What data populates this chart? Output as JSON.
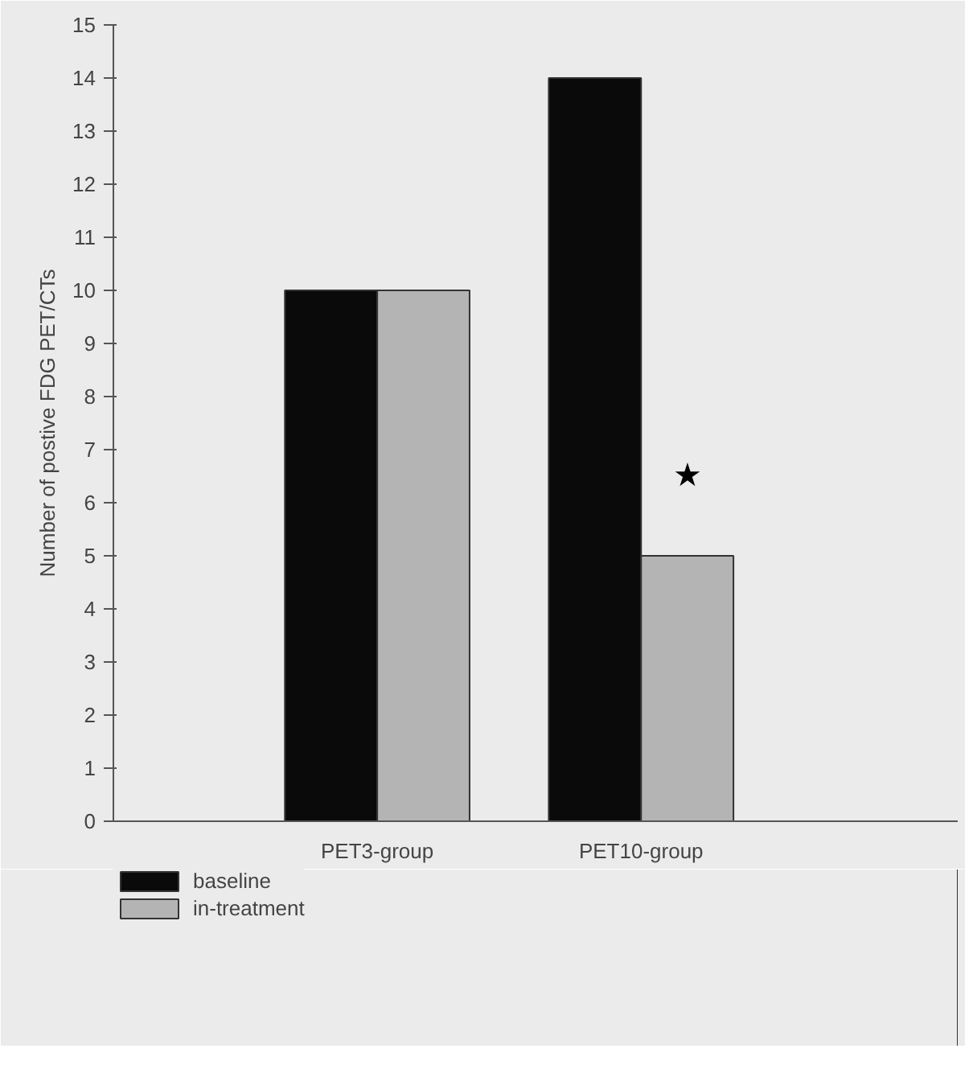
{
  "chart_data": {
    "type": "bar",
    "ylabel": "Number of postive FDG PET/CTs",
    "categories": [
      "PET3-group",
      "PET10-group"
    ],
    "series": [
      {
        "name": "baseline",
        "color": "#0a0a0a",
        "values": [
          10,
          14
        ]
      },
      {
        "name": "in-treatment",
        "color": "#b4b4b4",
        "values": [
          10,
          5
        ]
      }
    ],
    "ylim": [
      0,
      15
    ],
    "yticks": [
      0,
      1,
      2,
      3,
      4,
      5,
      6,
      7,
      8,
      9,
      10,
      11,
      12,
      13,
      14,
      15
    ],
    "annotations": [
      {
        "text": "★",
        "x": "PET10-group",
        "y": 6.5
      }
    ],
    "grid": false,
    "legend": "bottom left"
  }
}
